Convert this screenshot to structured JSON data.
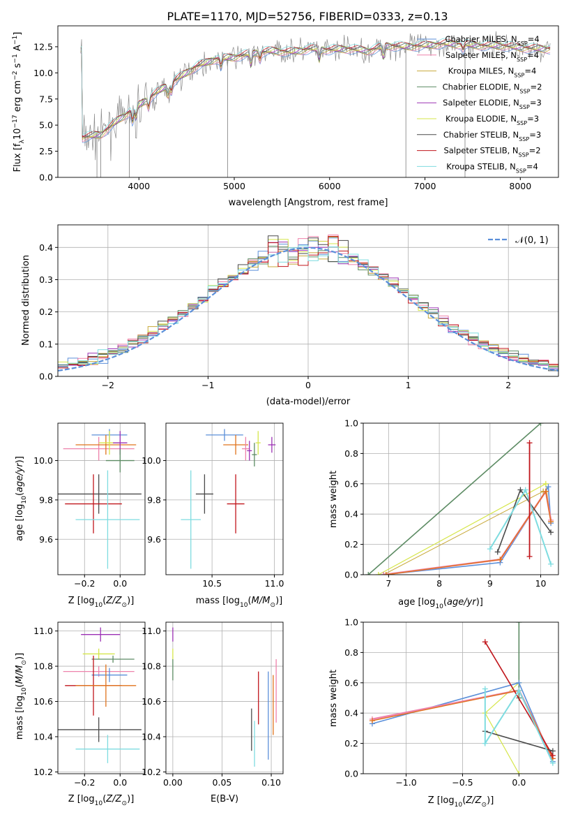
{
  "figure": {
    "title": "PLATE=1170, MJD=52756, FIBERID=0333, z=0.13"
  },
  "chart_data": [
    {
      "id": "spectrum",
      "type": "line",
      "xlabel": "wavelength [Angstrom, rest frame]",
      "ylabel": "Flux [f_λ 10^-17 erg cm^-2 s^-1 A^-1]",
      "xlim": [
        3150,
        8400
      ],
      "ylim": [
        0,
        14.5
      ],
      "xticks": [
        4000,
        5000,
        6000,
        7000,
        8000
      ],
      "yticks": [
        0.0,
        2.5,
        5.0,
        7.5,
        10.0,
        12.5
      ],
      "grid": false,
      "legend_position": "top-right",
      "data_trend": {
        "x": [
          3400,
          3600,
          3800,
          4000,
          4200,
          4400,
          4600,
          4800,
          5000,
          5200,
          5400,
          5600,
          5800,
          6000,
          6200,
          6400,
          6600,
          6800,
          7000,
          7200,
          7400,
          7600,
          7800,
          8000,
          8200
        ],
        "y": [
          3.8,
          4.1,
          5.6,
          6.9,
          8.2,
          9.4,
          10.6,
          11.3,
          11.5,
          11.9,
          12.1,
          12.0,
          12.3,
          12.2,
          12.3,
          12.1,
          12.6,
          12.5,
          12.6,
          12.8,
          12.7,
          12.6,
          12.6,
          12.4,
          12.3
        ]
      },
      "series": [
        {
          "name": "Chabrier MILES, N_SSP=4",
          "color": "#5b8fd9"
        },
        {
          "name": "Salpeter MILES, N_SSP=4",
          "color": "#ee82ab"
        },
        {
          "name": "Kroupa MILES, N_SSP=4",
          "color": "#c8a93a"
        },
        {
          "name": "Chabrier ELODIE, N_SSP=2",
          "color": "#5c8b63"
        },
        {
          "name": "Salpeter ELODIE, N_SSP=3",
          "color": "#9b30b4"
        },
        {
          "name": "Kroupa ELODIE, N_SSP=3",
          "color": "#d6e64a"
        },
        {
          "name": "Chabrier STELIB, N_SSP=3",
          "color": "#4a4a4a"
        },
        {
          "name": "Salpeter STELIB, N_SSP=2",
          "color": "#c0151b"
        },
        {
          "name": "Kroupa STELIB, N_SSP=4",
          "color": "#7edce0"
        }
      ]
    },
    {
      "id": "residuals",
      "type": "step",
      "xlabel": "(data-model)/error",
      "ylabel": "Normed distribution",
      "xlim": [
        -2.5,
        2.5
      ],
      "ylim": [
        0,
        0.47
      ],
      "xticks": [
        -2,
        -1,
        0,
        1,
        2
      ],
      "yticks": [
        0.0,
        0.1,
        0.2,
        0.3,
        0.4
      ],
      "grid": true,
      "legend_position": "top-right",
      "reference": {
        "name": "N(0,1)",
        "color": "#5b8fd9",
        "style": "dashed"
      }
    },
    {
      "id": "age_vs_Z",
      "type": "errorbar",
      "xlabel": "Z [log10(Z/Z_sun)]",
      "ylabel": "age [log10(age/yr)]",
      "xlim": [
        -0.35,
        0.14
      ],
      "ylim": [
        9.42,
        10.19
      ],
      "xticks": [
        -0.2,
        0.0
      ],
      "yticks": [
        9.6,
        9.8,
        10.0
      ],
      "grid": true,
      "points": [
        {
          "x": -0.12,
          "y": 10.06,
          "xerr": 0.2,
          "yerr": 0.06,
          "color": "#ee82ab"
        },
        {
          "x": -0.06,
          "y": 10.13,
          "xerr": 0.1,
          "yerr": 0.03,
          "color": "#5b8fd9"
        },
        {
          "x": -0.08,
          "y": 10.08,
          "xerr": 0.17,
          "yerr": 0.05,
          "color": "#e0731c"
        },
        {
          "x": -0.06,
          "y": 10.09,
          "xerr": 0.06,
          "yerr": 0.06,
          "color": "#d6e64a"
        },
        {
          "x": 0.0,
          "y": 10.09,
          "xerr": 0.04,
          "yerr": 0.06,
          "color": "#9b30b4"
        },
        {
          "x": 0.0,
          "y": 10.0,
          "xerr": 0.08,
          "yerr": 0.06,
          "color": "#5c8b63"
        },
        {
          "x": -0.12,
          "y": 9.83,
          "xerr": 0.24,
          "yerr": 0.1,
          "color": "#4a4a4a"
        },
        {
          "x": -0.15,
          "y": 9.78,
          "xerr": 0.16,
          "yerr": 0.15,
          "color": "#c0151b"
        },
        {
          "x": -0.07,
          "y": 9.7,
          "xerr": 0.18,
          "yerr": 0.25,
          "color": "#7edce0"
        }
      ]
    },
    {
      "id": "age_vs_mass",
      "type": "errorbar",
      "xlabel": "mass [log10(M/M_sun)]",
      "ylabel": "",
      "xlim": [
        10.13,
        11.07
      ],
      "ylim": [
        9.42,
        10.19
      ],
      "xticks": [
        10.5,
        11.0
      ],
      "yticks": [
        9.6,
        9.8,
        10.0
      ],
      "grid": true,
      "points": [
        {
          "x": 10.6,
          "y": 10.13,
          "xerr": 0.15,
          "yerr": 0.03,
          "color": "#5b8fd9"
        },
        {
          "x": 10.69,
          "y": 10.08,
          "xerr": 0.1,
          "yerr": 0.05,
          "color": "#e0731c"
        },
        {
          "x": 10.77,
          "y": 10.06,
          "xerr": 0.03,
          "yerr": 0.06,
          "color": "#ee82ab"
        },
        {
          "x": 10.84,
          "y": 10.03,
          "xerr": 0.02,
          "yerr": 0.06,
          "color": "#5c8b63"
        },
        {
          "x": 10.8,
          "y": 10.05,
          "xerr": 0.02,
          "yerr": 0.05,
          "color": "#9b30b4"
        },
        {
          "x": 10.87,
          "y": 10.09,
          "xerr": 0.02,
          "yerr": 0.06,
          "color": "#d6e64a"
        },
        {
          "x": 10.98,
          "y": 10.08,
          "xerr": 0.03,
          "yerr": 0.04,
          "color": "#9b30b4"
        },
        {
          "x": 10.44,
          "y": 9.83,
          "xerr": 0.07,
          "yerr": 0.1,
          "color": "#4a4a4a"
        },
        {
          "x": 10.69,
          "y": 9.78,
          "xerr": 0.07,
          "yerr": 0.15,
          "color": "#c0151b"
        },
        {
          "x": 10.33,
          "y": 9.7,
          "xerr": 0.08,
          "yerr": 0.25,
          "color": "#7edce0"
        }
      ]
    },
    {
      "id": "massweight_vs_age",
      "type": "line",
      "xlabel": "age [log10(age/yr)]",
      "ylabel": "mass weight",
      "xlim": [
        6.5,
        10.35
      ],
      "ylim": [
        0,
        1.0
      ],
      "xticks": [
        7,
        8,
        9,
        10
      ],
      "yticks": [
        0.0,
        0.2,
        0.4,
        0.6,
        0.8,
        1.0
      ],
      "grid": true
    },
    {
      "id": "mass_vs_Z",
      "type": "errorbar",
      "xlabel": "Z [log10(Z/Z_sun)]",
      "ylabel": "mass [log10(M/M_sun)]",
      "xlim": [
        -0.35,
        0.14
      ],
      "ylim": [
        10.19,
        11.05
      ],
      "xticks": [
        -0.2,
        0.0
      ],
      "yticks": [
        10.2,
        10.4,
        10.6,
        10.8,
        11.0
      ],
      "grid": true,
      "points": [
        {
          "x": -0.11,
          "y": 10.98,
          "xerr": 0.11,
          "yerr": 0.04,
          "color": "#9b30b4"
        },
        {
          "x": -0.12,
          "y": 10.87,
          "xerr": 0.09,
          "yerr": 0.03,
          "color": "#d6e64a"
        },
        {
          "x": -0.04,
          "y": 10.84,
          "xerr": 0.12,
          "yerr": 0.02,
          "color": "#5c8b63"
        },
        {
          "x": -0.12,
          "y": 10.77,
          "xerr": 0.2,
          "yerr": 0.03,
          "color": "#ee82ab"
        },
        {
          "x": -0.06,
          "y": 10.75,
          "xerr": 0.1,
          "yerr": 0.04,
          "color": "#5b8fd9"
        },
        {
          "x": -0.15,
          "y": 10.69,
          "xerr": 0.16,
          "yerr": 0.17,
          "color": "#c0151b"
        },
        {
          "x": -0.08,
          "y": 10.69,
          "xerr": 0.17,
          "yerr": 0.12,
          "color": "#e0731c"
        },
        {
          "x": -0.12,
          "y": 10.44,
          "xerr": 0.24,
          "yerr": 0.07,
          "color": "#4a4a4a"
        },
        {
          "x": -0.07,
          "y": 10.33,
          "xerr": 0.18,
          "yerr": 0.08,
          "color": "#7edce0"
        }
      ]
    },
    {
      "id": "mass_vs_ebv",
      "type": "errorbar",
      "xlabel": "E(B-V)",
      "ylabel": "",
      "xlim": [
        -0.007,
        0.112
      ],
      "ylim": [
        10.19,
        11.05
      ],
      "xticks": [
        0.0,
        0.05,
        0.1
      ],
      "yticks": [
        10.2,
        10.4,
        10.6,
        10.8,
        11.0
      ],
      "grid": true,
      "points": [
        {
          "x": 0.0,
          "y": 10.98,
          "xerr": 0,
          "yerr": 0.04,
          "color": "#9b30b4"
        },
        {
          "x": 0.0,
          "y": 10.87,
          "xerr": 0,
          "yerr": 0.03,
          "color": "#d6e64a"
        },
        {
          "x": 0.0,
          "y": 10.78,
          "xerr": 0,
          "yerr": 0.06,
          "color": "#5c8b63"
        },
        {
          "x": 0.08,
          "y": 10.44,
          "xerr": 0,
          "yerr": 0.12,
          "color": "#4a4a4a"
        },
        {
          "x": 0.083,
          "y": 10.36,
          "xerr": 0,
          "yerr": 0.13,
          "color": "#7edce0"
        },
        {
          "x": 0.087,
          "y": 10.62,
          "xerr": 0,
          "yerr": 0.15,
          "color": "#c0151b"
        },
        {
          "x": 0.097,
          "y": 10.52,
          "xerr": 0,
          "yerr": 0.25,
          "color": "#5b8fd9"
        },
        {
          "x": 0.102,
          "y": 10.58,
          "xerr": 0,
          "yerr": 0.17,
          "color": "#e0731c"
        },
        {
          "x": 0.105,
          "y": 10.66,
          "xerr": 0,
          "yerr": 0.18,
          "color": "#ee82ab"
        }
      ]
    },
    {
      "id": "massweight_vs_Z",
      "type": "line",
      "xlabel": "Z [log10(Z/Z_sun)]",
      "ylabel": "mass weight",
      "xlim": [
        -1.38,
        0.35
      ],
      "ylim": [
        0,
        1.0
      ],
      "xticks": [
        -1.0,
        -0.5,
        0.0
      ],
      "yticks": [
        0.0,
        0.2,
        0.4,
        0.6,
        0.8,
        1.0
      ],
      "grid": true
    }
  ],
  "tick_labels": {
    "spectrum_x": [
      "4000",
      "5000",
      "6000",
      "7000",
      "8000"
    ],
    "spectrum_y": [
      "0.0",
      "2.5",
      "5.0",
      "7.5",
      "10.0",
      "12.5"
    ],
    "resid_x": [
      "−2",
      "−1",
      "0",
      "1",
      "2"
    ],
    "resid_y": [
      "0.0",
      "0.1",
      "0.2",
      "0.3",
      "0.4"
    ],
    "z_x": [
      "−0.2",
      "0.0"
    ],
    "age_y": [
      "9.6",
      "9.8",
      "10.0"
    ],
    "mass_x": [
      "10.5",
      "11.0"
    ],
    "agew_x": [
      "7",
      "8",
      "9",
      "10"
    ],
    "w_y": [
      "0.0",
      "0.2",
      "0.4",
      "0.6",
      "0.8",
      "1.0"
    ],
    "mass_y": [
      "10.2",
      "10.4",
      "10.6",
      "10.8",
      "11.0"
    ],
    "ebv_x": [
      "0.00",
      "0.05",
      "0.10"
    ],
    "zw_x": [
      "−1.0",
      "−0.5",
      "0.0"
    ]
  },
  "legend_labels": {
    "spectrum": [
      {
        "prefix": "Chabrier MILES, N",
        "sub": "SSP",
        "suffix": "=4"
      },
      {
        "prefix": "Salpeter MILES, N",
        "sub": "SSP",
        "suffix": "=4"
      },
      {
        "prefix": "Kroupa MILES, N",
        "sub": "SSP",
        "suffix": "=4"
      },
      {
        "prefix": "Chabrier ELODIE, N",
        "sub": "SSP",
        "suffix": "=2"
      },
      {
        "prefix": "Salpeter ELODIE, N",
        "sub": "SSP",
        "suffix": "=3"
      },
      {
        "prefix": "Kroupa ELODIE, N",
        "sub": "SSP",
        "suffix": "=3"
      },
      {
        "prefix": "Chabrier STELIB, N",
        "sub": "SSP",
        "suffix": "=3"
      },
      {
        "prefix": "Salpeter STELIB, N",
        "sub": "SSP",
        "suffix": "=2"
      },
      {
        "prefix": "Kroupa STELIB, N",
        "sub": "SSP",
        "suffix": "=4"
      }
    ],
    "normal": "𝒩(0, 1)"
  }
}
